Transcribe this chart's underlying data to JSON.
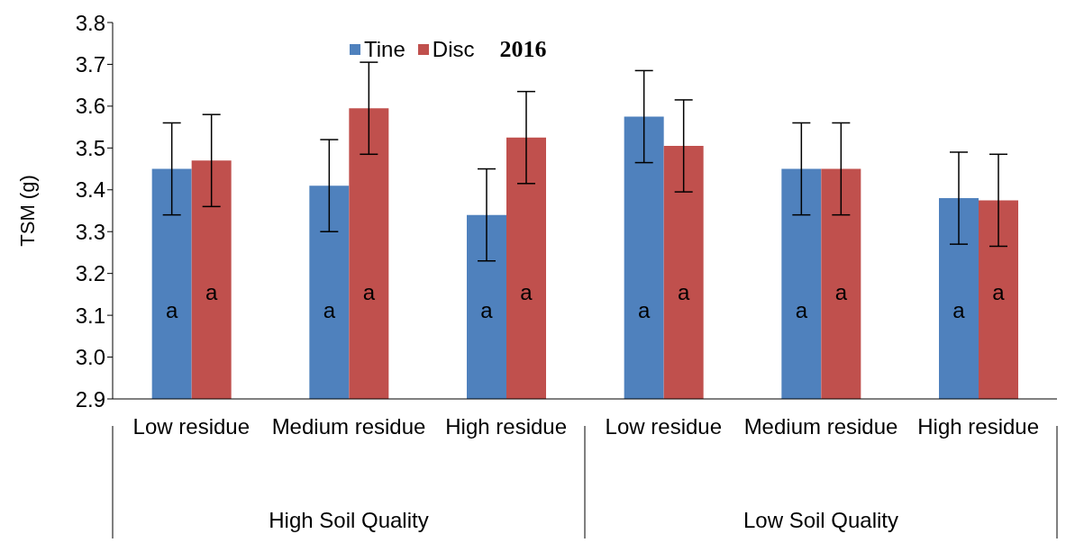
{
  "chart_data": {
    "type": "bar",
    "title": "2016",
    "ylabel": "TSM (g)",
    "categories": [
      "Low residue",
      "Medium residue",
      "High residue",
      "Low residue",
      "Medium residue",
      "High residue"
    ],
    "series": [
      {
        "name": "Tine",
        "color": "#4f81bd",
        "values": [
          3.45,
          3.41,
          3.34,
          3.575,
          3.45,
          3.38
        ],
        "errors": [
          0.11,
          0.11,
          0.11,
          0.11,
          0.11,
          0.11
        ],
        "value_labels": [
          "a",
          "a",
          "a",
          "a",
          "a",
          "a"
        ]
      },
      {
        "name": "Disc",
        "color": "#c0504d",
        "values": [
          3.47,
          3.595,
          3.525,
          3.505,
          3.45,
          3.375
        ],
        "errors": [
          0.11,
          0.11,
          0.11,
          0.11,
          0.11,
          0.11
        ],
        "value_labels": [
          "a",
          "a",
          "a",
          "a",
          "a",
          "a"
        ]
      }
    ],
    "ylim": [
      2.9,
      3.8
    ],
    "yticks": [
      {
        "value": 2.9,
        "label": "2.9"
      },
      {
        "value": 3,
        "label": "3.0"
      },
      {
        "value": 3.1,
        "label": "3.1"
      },
      {
        "value": 3.2,
        "label": "3.2"
      },
      {
        "value": 3.3,
        "label": "3.3"
      },
      {
        "value": 3.4,
        "label": "3.4"
      },
      {
        "value": 3.5,
        "label": "3.5"
      },
      {
        "value": 3.6,
        "label": "3.6"
      },
      {
        "value": 3.7,
        "label": "3.7"
      },
      {
        "value": 3.8,
        "label": "3.8"
      }
    ],
    "annotations": [
      "High Soil Quality",
      "Low Soil Quality"
    ],
    "legend": "top",
    "grid": false
  }
}
